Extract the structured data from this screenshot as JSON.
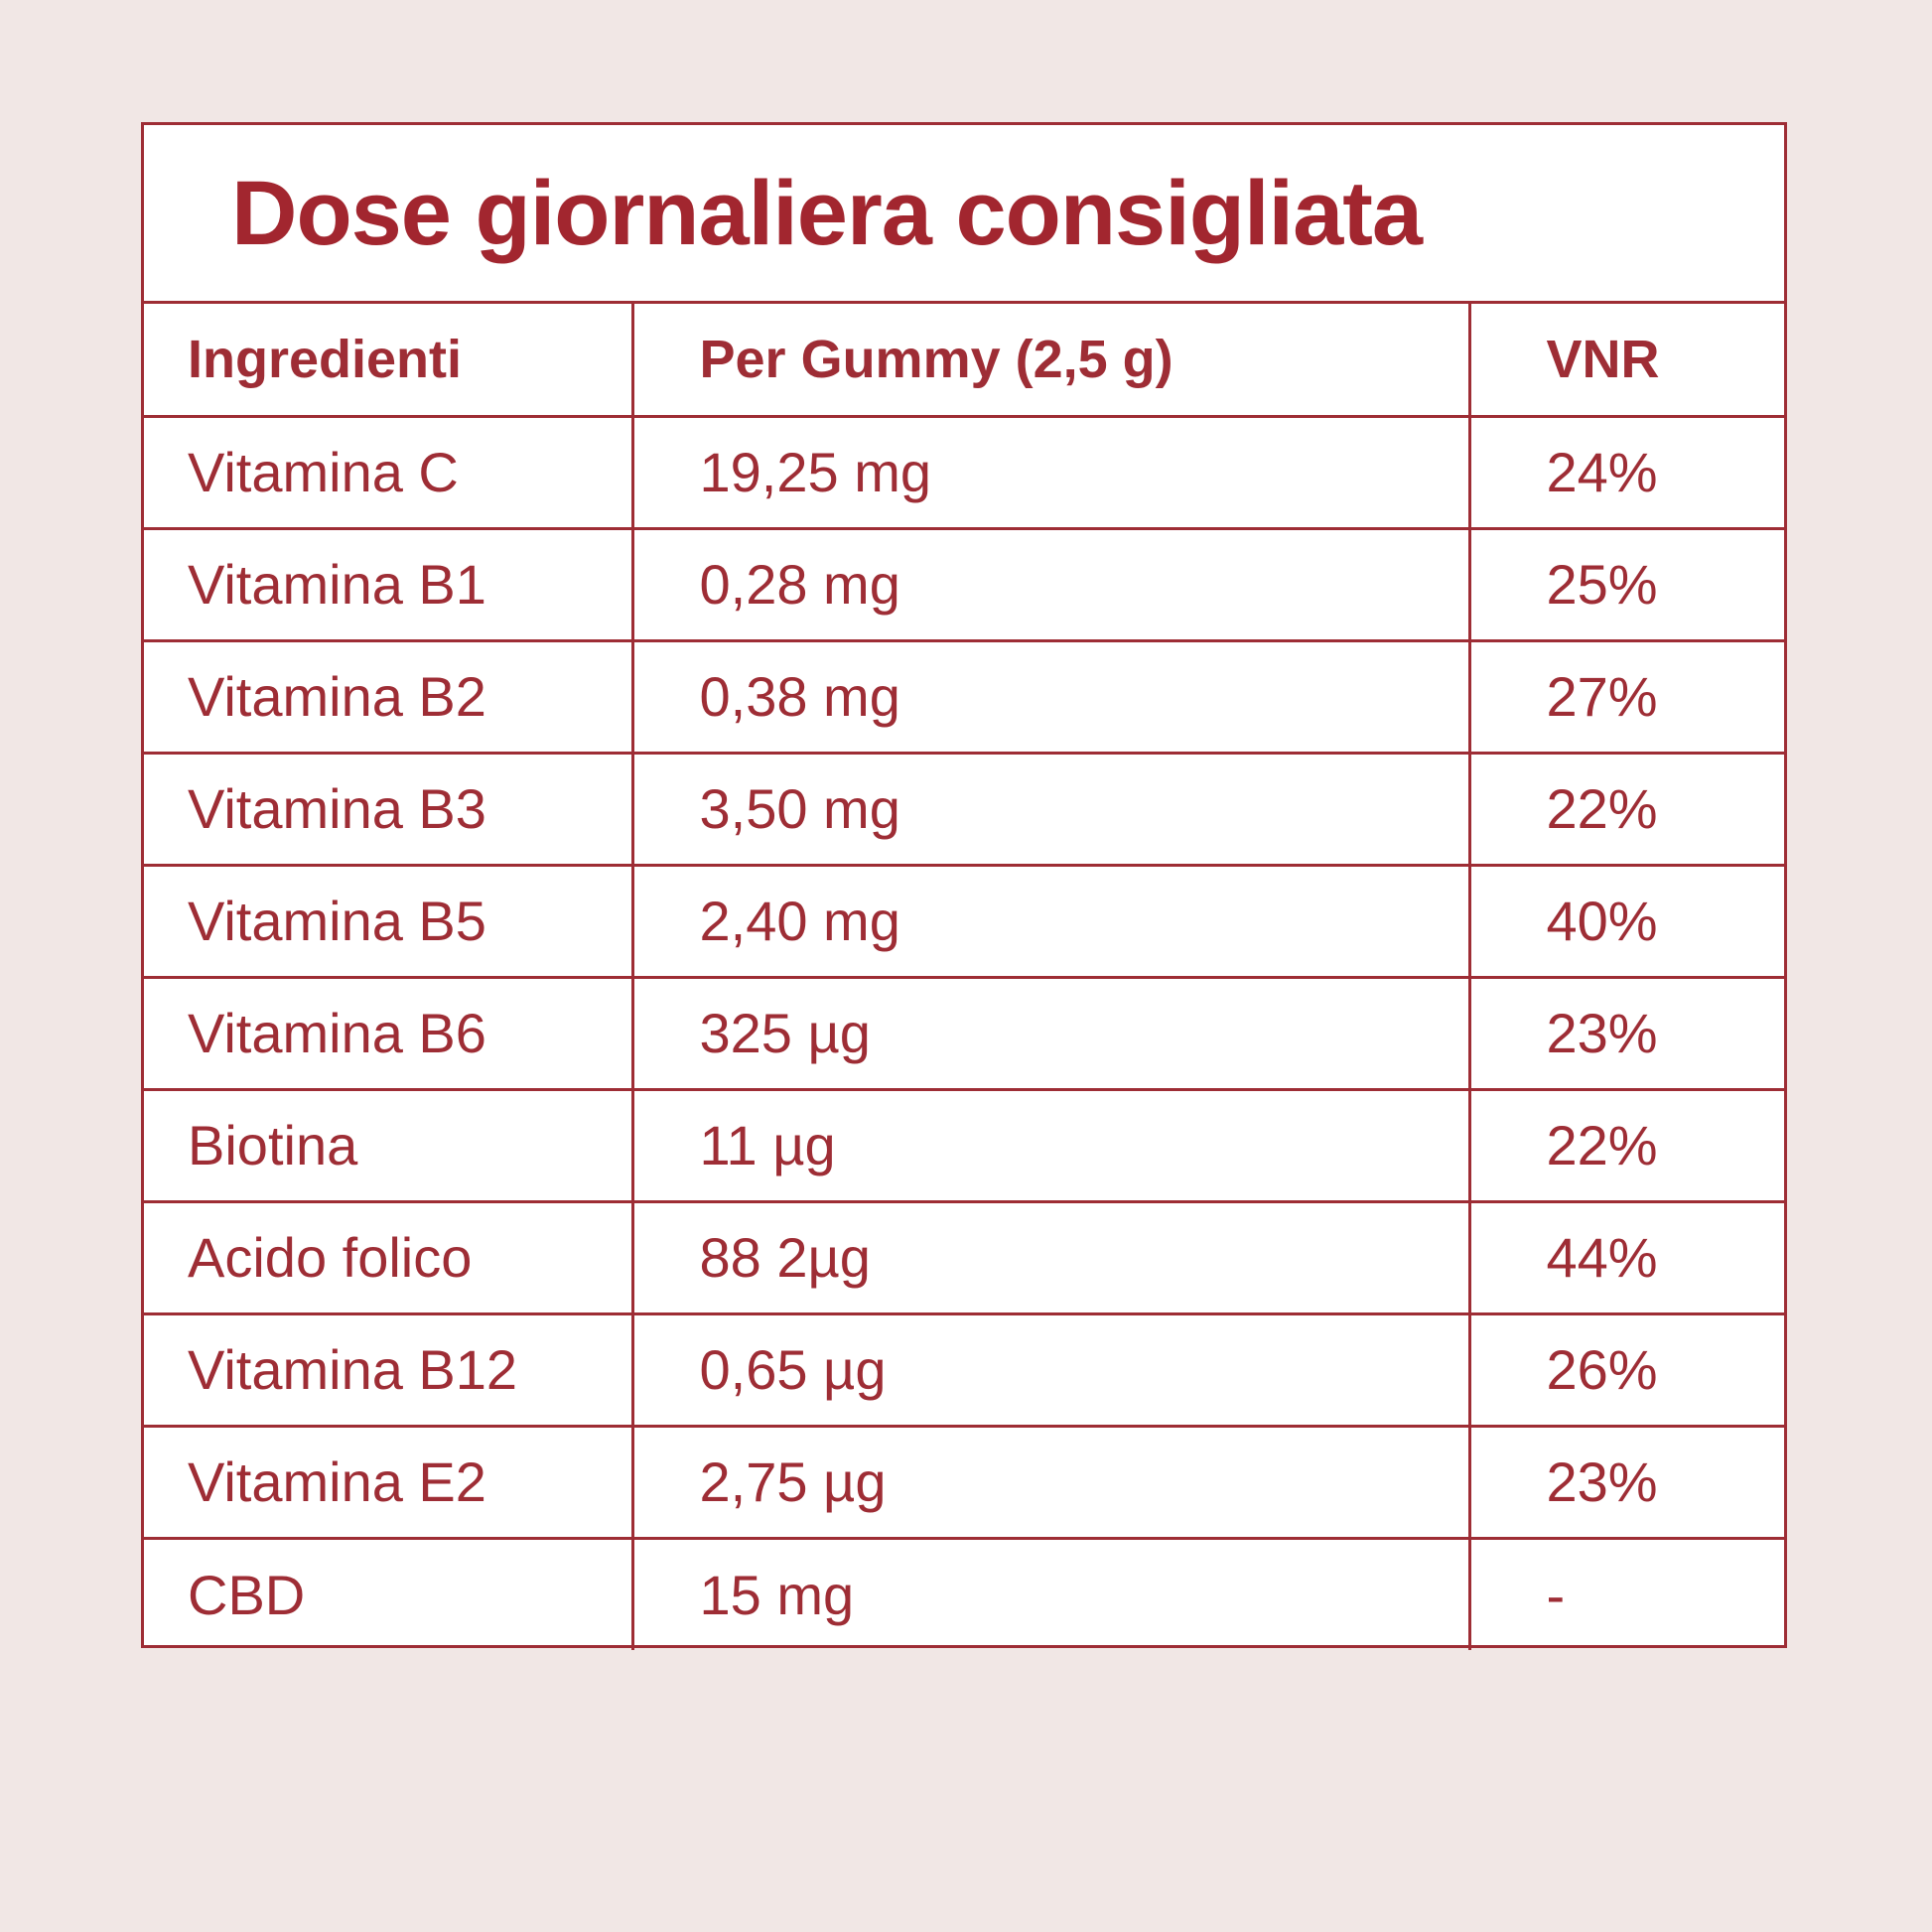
{
  "title": "Dose giornaliera consigliata",
  "colors": {
    "accent": "#9e2d35",
    "background": "#f1e7e5",
    "panel": "#ffffff"
  },
  "table": {
    "headers": [
      "Ingredienti",
      "Per Gummy (2,5 g)",
      "VNR"
    ],
    "rows": [
      [
        "Vitamina C",
        "19,25 mg",
        "24%"
      ],
      [
        "Vitamina B1",
        "0,28 mg",
        "25%"
      ],
      [
        "Vitamina B2",
        "0,38 mg",
        "27%"
      ],
      [
        "Vitamina B3",
        "3,50 mg",
        "22%"
      ],
      [
        "Vitamina B5",
        "2,40 mg",
        "40%"
      ],
      [
        "Vitamina B6",
        "325 µg",
        "23%"
      ],
      [
        "Biotina",
        "11 µg",
        "22%"
      ],
      [
        "Acido folico",
        "88 2µg",
        "44%"
      ],
      [
        "Vitamina B12",
        "0,65 µg",
        "26%"
      ],
      [
        "Vitamina E2",
        "2,75 µg",
        "23%"
      ],
      [
        "CBD",
        "15 mg",
        "-"
      ]
    ]
  }
}
